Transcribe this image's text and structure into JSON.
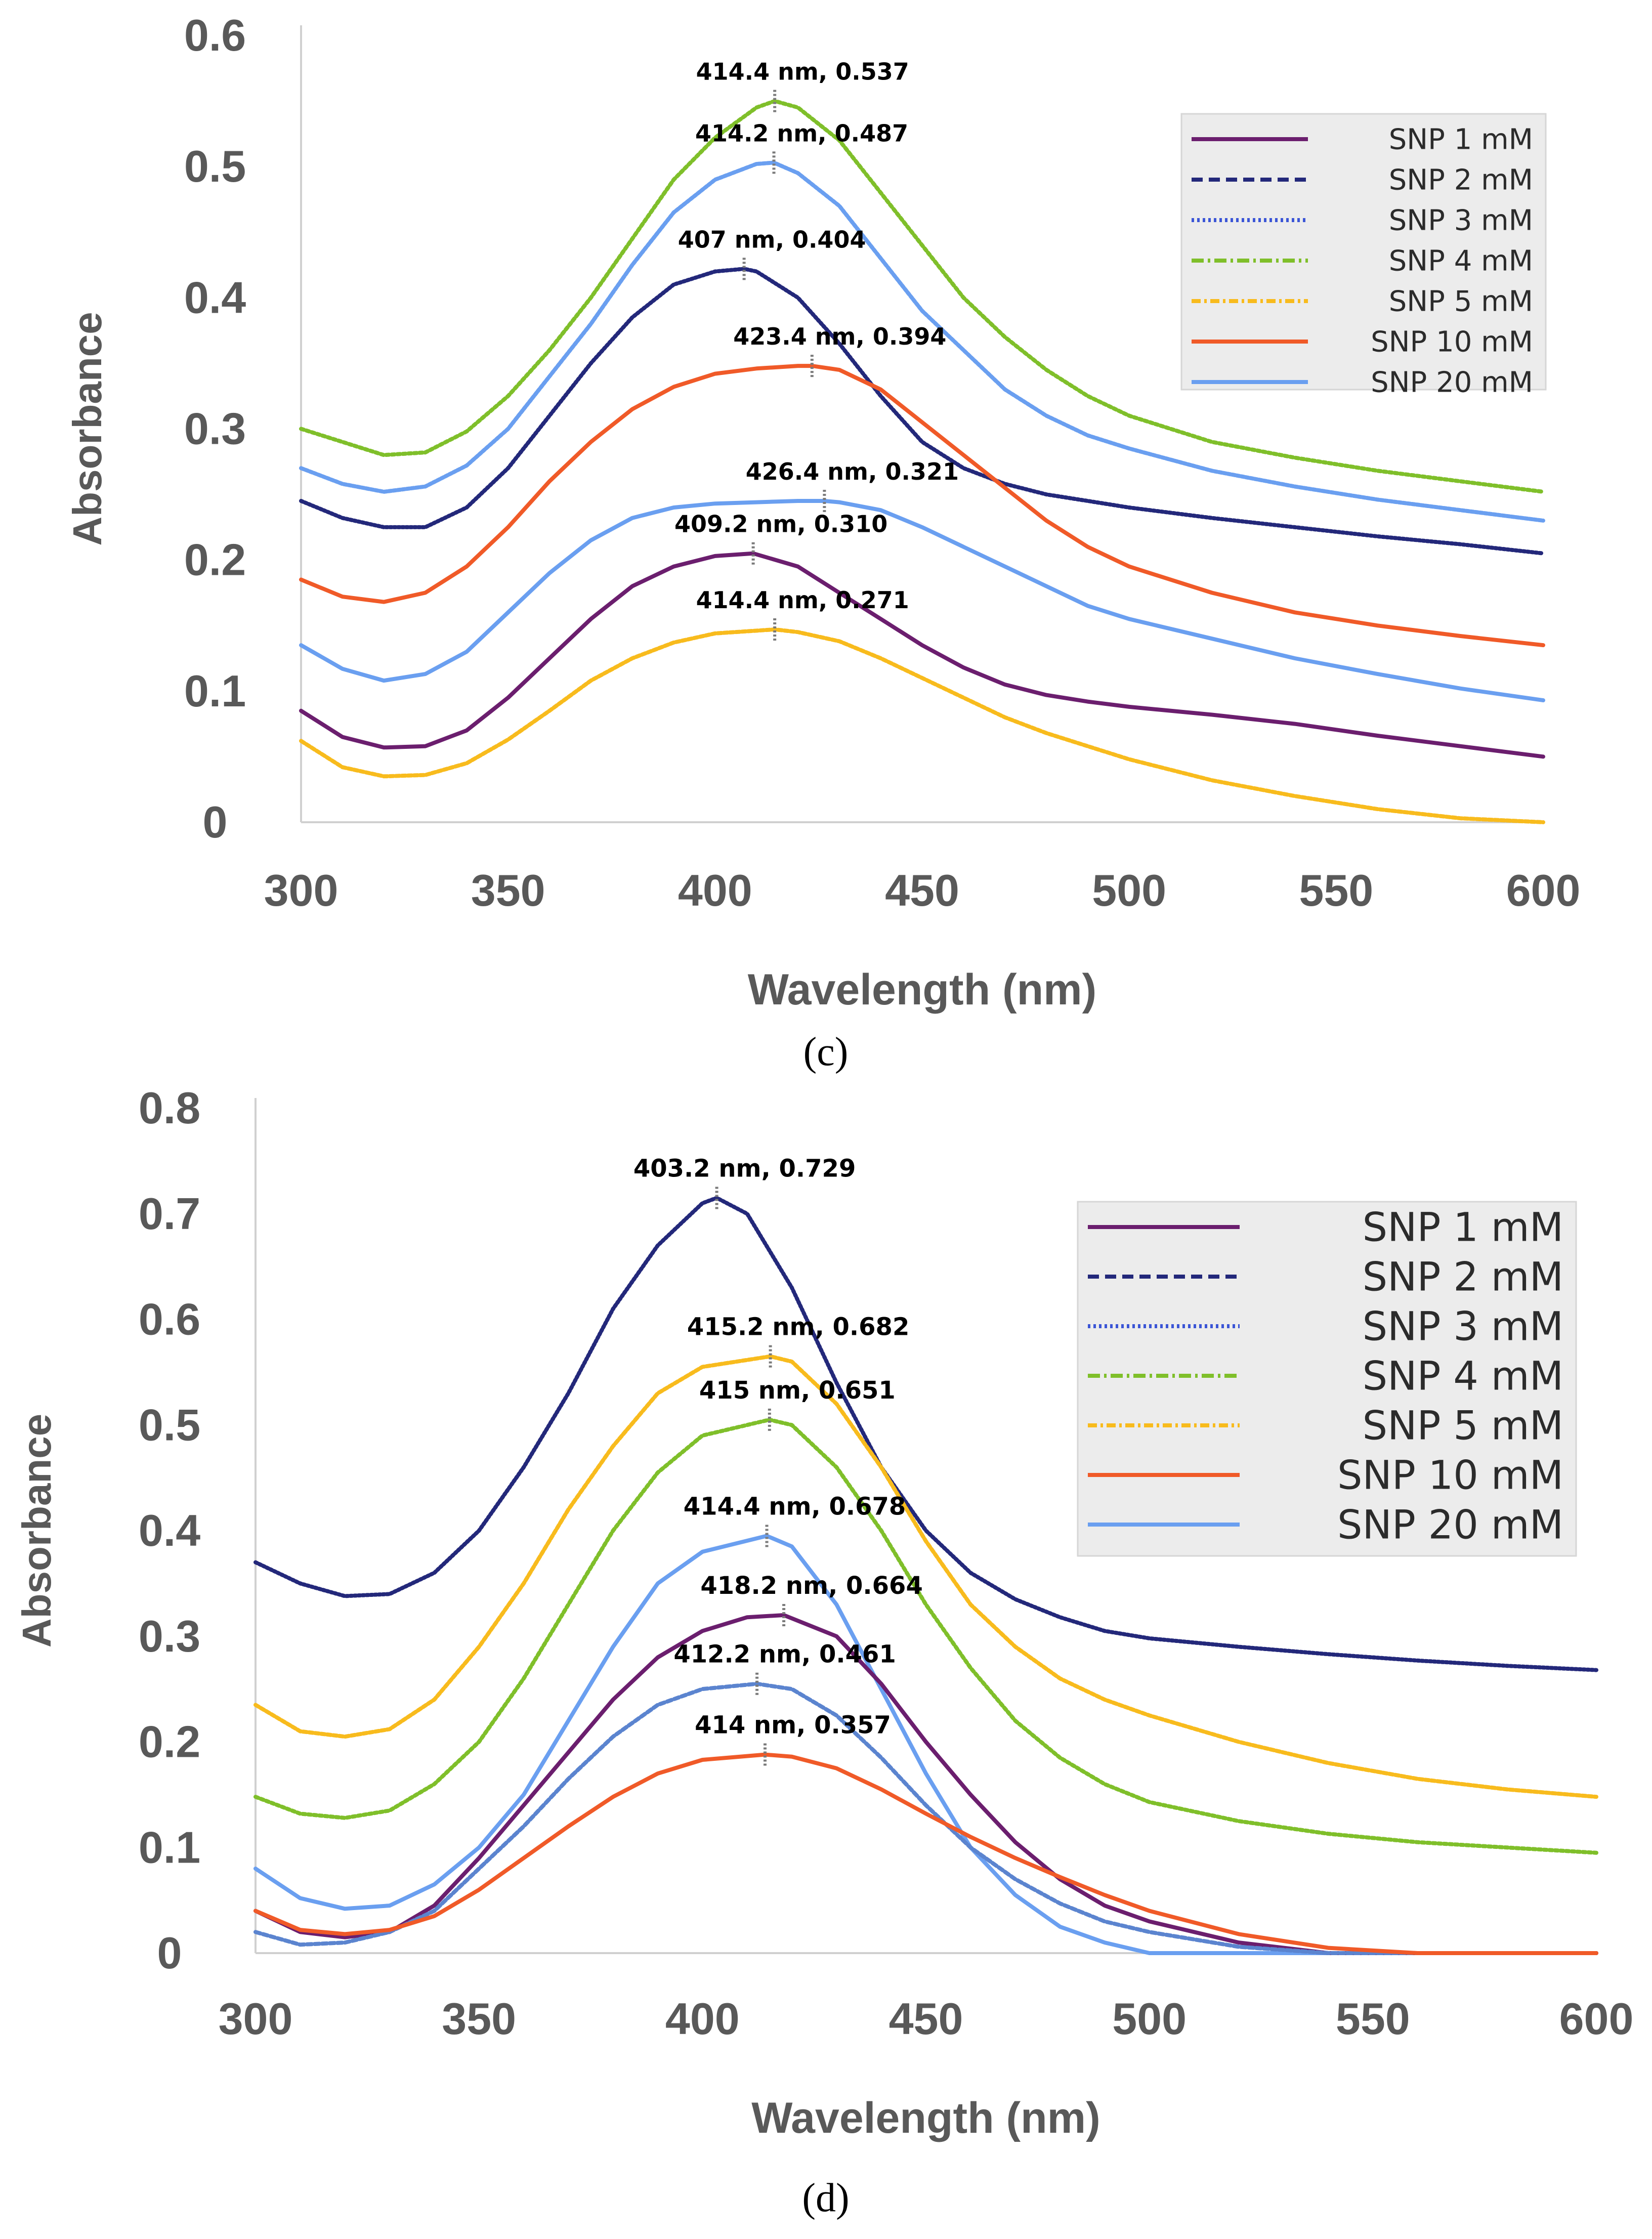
{
  "chart_data": [
    {
      "type": "line",
      "panel_label": "(c)",
      "xlabel": "Wavelength (nm)",
      "ylabel": "Absorbance",
      "xlim": [
        300,
        600
      ],
      "ylim": [
        0,
        0.6
      ],
      "x_ticks": [
        "300",
        "350",
        "400",
        "450",
        "500",
        "550",
        "600"
      ],
      "y_ticks": [
        "0",
        "0.1",
        "0.2",
        "0.3",
        "0.4",
        "0.5",
        "0.6"
      ],
      "legend_position": "top-right",
      "legend": [
        "SNP 1 mM",
        "SNP 2 mM",
        "SNP 3 mM",
        "SNP 4 mM",
        "SNP 5 mM",
        "SNP 10 mM",
        "SNP 20 mM"
      ],
      "series": [
        {
          "name": "SNP 4",
          "color": "#7fbf2a",
          "dash": "6 5",
          "x": [
            300,
            310,
            320,
            330,
            340,
            350,
            360,
            370,
            380,
            390,
            400,
            410,
            414.4,
            420,
            430,
            440,
            450,
            460,
            470,
            480,
            490,
            500,
            520,
            540,
            560,
            580,
            600
          ],
          "y": [
            0.3,
            0.29,
            0.28,
            0.282,
            0.298,
            0.325,
            0.36,
            0.4,
            0.445,
            0.49,
            0.522,
            0.545,
            0.55,
            0.545,
            0.52,
            0.48,
            0.44,
            0.4,
            0.37,
            0.345,
            0.325,
            0.31,
            0.29,
            0.278,
            0.268,
            0.26,
            0.252
          ]
        },
        {
          "name": "SNP 20",
          "color": "#6a9ff0",
          "dash": "6 3",
          "x": [
            300,
            310,
            320,
            330,
            340,
            350,
            360,
            370,
            380,
            390,
            400,
            410,
            414.2,
            420,
            430,
            440,
            450,
            460,
            470,
            480,
            490,
            500,
            520,
            540,
            560,
            580,
            600
          ],
          "y": [
            0.27,
            0.258,
            0.252,
            0.256,
            0.272,
            0.3,
            0.34,
            0.38,
            0.425,
            0.465,
            0.49,
            0.502,
            0.503,
            0.495,
            0.47,
            0.43,
            0.39,
            0.36,
            0.33,
            0.31,
            0.295,
            0.285,
            0.268,
            0.256,
            0.246,
            0.238,
            0.23
          ]
        },
        {
          "name": "SNP 3",
          "color": "#23287a",
          "dash": "4 4",
          "x": [
            300,
            310,
            320,
            330,
            340,
            350,
            360,
            370,
            380,
            390,
            400,
            407,
            410,
            420,
            430,
            440,
            450,
            460,
            470,
            480,
            490,
            500,
            520,
            540,
            560,
            580,
            600
          ],
          "y": [
            0.245,
            0.232,
            0.225,
            0.225,
            0.24,
            0.27,
            0.31,
            0.35,
            0.385,
            0.41,
            0.42,
            0.422,
            0.42,
            0.4,
            0.365,
            0.325,
            0.29,
            0.27,
            0.258,
            0.25,
            0.245,
            0.24,
            0.232,
            0.225,
            0.218,
            0.212,
            0.205
          ]
        },
        {
          "name": "SNP 10",
          "color": "#f05a28",
          "dash": "",
          "x": [
            300,
            310,
            320,
            330,
            340,
            350,
            360,
            370,
            380,
            390,
            400,
            410,
            420,
            423.4,
            430,
            440,
            450,
            460,
            470,
            480,
            490,
            500,
            520,
            540,
            560,
            580,
            600
          ],
          "y": [
            0.185,
            0.172,
            0.168,
            0.175,
            0.195,
            0.225,
            0.26,
            0.29,
            0.315,
            0.332,
            0.342,
            0.346,
            0.348,
            0.348,
            0.345,
            0.33,
            0.305,
            0.28,
            0.255,
            0.23,
            0.21,
            0.195,
            0.175,
            0.16,
            0.15,
            0.142,
            0.135
          ]
        },
        {
          "name": "SNP 20b",
          "color": "#6a9ff0",
          "dash": "",
          "x": [
            300,
            310,
            320,
            330,
            340,
            350,
            360,
            370,
            380,
            390,
            400,
            410,
            420,
            426.4,
            430,
            440,
            450,
            460,
            470,
            480,
            490,
            500,
            520,
            540,
            560,
            580,
            600
          ],
          "y": [
            0.135,
            0.117,
            0.108,
            0.113,
            0.13,
            0.16,
            0.19,
            0.215,
            0.232,
            0.24,
            0.243,
            0.244,
            0.245,
            0.245,
            0.244,
            0.238,
            0.225,
            0.21,
            0.195,
            0.18,
            0.165,
            0.155,
            0.14,
            0.125,
            0.113,
            0.102,
            0.093
          ]
        },
        {
          "name": "SNP 1",
          "color": "#6b1e6e",
          "dash": "",
          "x": [
            300,
            310,
            320,
            330,
            340,
            350,
            360,
            370,
            380,
            390,
            400,
            409.2,
            420,
            430,
            440,
            450,
            460,
            470,
            480,
            490,
            500,
            520,
            540,
            560,
            580,
            600
          ],
          "y": [
            0.085,
            0.065,
            0.057,
            0.058,
            0.07,
            0.095,
            0.125,
            0.155,
            0.18,
            0.195,
            0.203,
            0.205,
            0.195,
            0.175,
            0.155,
            0.135,
            0.118,
            0.105,
            0.097,
            0.092,
            0.088,
            0.082,
            0.075,
            0.066,
            0.058,
            0.05
          ]
        },
        {
          "name": "SNP 5",
          "color": "#f8bb1d",
          "dash": "8 4",
          "x": [
            300,
            310,
            320,
            330,
            340,
            350,
            360,
            370,
            380,
            390,
            400,
            414.4,
            420,
            430,
            440,
            450,
            460,
            470,
            480,
            490,
            500,
            520,
            540,
            560,
            580,
            600
          ],
          "y": [
            0.062,
            0.042,
            0.035,
            0.036,
            0.045,
            0.063,
            0.085,
            0.108,
            0.125,
            0.137,
            0.144,
            0.147,
            0.145,
            0.138,
            0.125,
            0.11,
            0.095,
            0.08,
            0.068,
            0.058,
            0.048,
            0.032,
            0.02,
            0.01,
            0.003,
            0.0
          ]
        }
      ],
      "annotations": [
        {
          "text": "414.4 nm, 0.537",
          "x": 414.4,
          "y": 0.55
        },
        {
          "text": "414.2 nm, 0.487",
          "x": 414.2,
          "y": 0.503
        },
        {
          "text": "407 nm, 0.404",
          "x": 407,
          "y": 0.422
        },
        {
          "text": "423.4 nm, 0.394",
          "x": 423.4,
          "y": 0.348
        },
        {
          "text": "426.4 nm, 0.321",
          "x": 426.4,
          "y": 0.245
        },
        {
          "text": "409.2 nm, 0.310",
          "x": 409.2,
          "y": 0.205
        },
        {
          "text": "414.4 nm, 0.271",
          "x": 414.4,
          "y": 0.147
        }
      ]
    },
    {
      "type": "line",
      "panel_label": "(d)",
      "xlabel": "Wavelength (nm)",
      "ylabel": "Absorbance",
      "xlim": [
        300,
        600
      ],
      "ylim": [
        0,
        0.8
      ],
      "x_ticks": [
        "300",
        "350",
        "400",
        "450",
        "500",
        "550",
        "600"
      ],
      "y_ticks": [
        "0",
        "0.1",
        "0.2",
        "0.3",
        "0.4",
        "0.5",
        "0.6",
        "0.7",
        "0.8"
      ],
      "legend_position": "top-right",
      "legend": [
        "SNP 1 mM",
        "SNP 2 mM",
        "SNP 3 mM",
        "SNP 4 mM",
        "SNP 5 mM",
        "SNP 10 mM",
        "SNP 20 mM"
      ],
      "series": [
        {
          "name": "SNP 3",
          "color": "#23287a",
          "dash": "4 4",
          "x": [
            300,
            310,
            320,
            330,
            340,
            350,
            360,
            370,
            380,
            390,
            400,
            403.2,
            410,
            420,
            430,
            440,
            450,
            460,
            470,
            480,
            490,
            500,
            520,
            540,
            560,
            580,
            600
          ],
          "y": [
            0.37,
            0.35,
            0.338,
            0.34,
            0.36,
            0.4,
            0.46,
            0.53,
            0.61,
            0.67,
            0.71,
            0.715,
            0.7,
            0.63,
            0.54,
            0.46,
            0.4,
            0.36,
            0.335,
            0.318,
            0.305,
            0.298,
            0.29,
            0.283,
            0.277,
            0.272,
            0.268
          ]
        },
        {
          "name": "SNP 5",
          "color": "#f8bb1d",
          "dash": "8 4",
          "x": [
            300,
            310,
            320,
            330,
            340,
            350,
            360,
            370,
            380,
            390,
            400,
            415.2,
            420,
            430,
            440,
            450,
            460,
            470,
            480,
            490,
            500,
            520,
            540,
            560,
            580,
            600
          ],
          "y": [
            0.235,
            0.21,
            0.205,
            0.212,
            0.24,
            0.29,
            0.35,
            0.42,
            0.48,
            0.53,
            0.555,
            0.565,
            0.56,
            0.52,
            0.46,
            0.39,
            0.33,
            0.29,
            0.26,
            0.24,
            0.225,
            0.2,
            0.18,
            0.165,
            0.155,
            0.148
          ]
        },
        {
          "name": "SNP 4",
          "color": "#7fbf2a",
          "dash": "6 5",
          "x": [
            300,
            310,
            320,
            330,
            340,
            350,
            360,
            370,
            380,
            390,
            400,
            415,
            420,
            430,
            440,
            450,
            460,
            470,
            480,
            490,
            500,
            520,
            540,
            560,
            580,
            600
          ],
          "y": [
            0.148,
            0.132,
            0.128,
            0.135,
            0.16,
            0.2,
            0.26,
            0.33,
            0.4,
            0.455,
            0.49,
            0.505,
            0.5,
            0.46,
            0.4,
            0.33,
            0.27,
            0.22,
            0.185,
            0.16,
            0.143,
            0.125,
            0.113,
            0.105,
            0.1,
            0.095
          ]
        },
        {
          "name": "SNP 20",
          "color": "#6a9ff0",
          "dash": "",
          "x": [
            300,
            310,
            320,
            330,
            340,
            350,
            360,
            370,
            380,
            390,
            400,
            414.4,
            420,
            430,
            440,
            450,
            460,
            470,
            480,
            490,
            500,
            510,
            520,
            540,
            560,
            580,
            600
          ],
          "y": [
            0.08,
            0.052,
            0.042,
            0.045,
            0.065,
            0.1,
            0.15,
            0.22,
            0.29,
            0.35,
            0.38,
            0.395,
            0.385,
            0.33,
            0.25,
            0.17,
            0.1,
            0.055,
            0.025,
            0.01,
            0.0,
            0.0,
            0.0,
            0.0,
            0.0,
            0.0,
            0.0
          ]
        },
        {
          "name": "SNP 1",
          "color": "#6b1e6e",
          "dash": "",
          "x": [
            300,
            310,
            320,
            330,
            340,
            350,
            360,
            370,
            380,
            390,
            400,
            410,
            418.2,
            430,
            440,
            450,
            460,
            470,
            480,
            490,
            500,
            520,
            540,
            560,
            580,
            600
          ],
          "y": [
            0.04,
            0.02,
            0.015,
            0.02,
            0.045,
            0.09,
            0.14,
            0.19,
            0.24,
            0.28,
            0.305,
            0.318,
            0.32,
            0.3,
            0.255,
            0.2,
            0.15,
            0.105,
            0.07,
            0.045,
            0.03,
            0.01,
            0.0,
            0.0,
            0.0,
            0.0
          ]
        },
        {
          "name": "SNP 2",
          "color": "#5b84cf",
          "dash": "10 5",
          "x": [
            300,
            310,
            320,
            330,
            340,
            350,
            360,
            370,
            380,
            390,
            400,
            412.2,
            420,
            430,
            440,
            450,
            460,
            470,
            480,
            490,
            500,
            520,
            540,
            560,
            580,
            600
          ],
          "y": [
            0.02,
            0.008,
            0.01,
            0.02,
            0.04,
            0.08,
            0.12,
            0.165,
            0.205,
            0.235,
            0.25,
            0.255,
            0.25,
            0.225,
            0.185,
            0.14,
            0.1,
            0.07,
            0.047,
            0.03,
            0.02,
            0.006,
            0.0,
            0.0,
            0.0,
            0.0
          ]
        },
        {
          "name": "SNP 10",
          "color": "#f05a28",
          "dash": "",
          "x": [
            300,
            310,
            320,
            330,
            340,
            350,
            360,
            370,
            380,
            390,
            400,
            414,
            420,
            430,
            440,
            450,
            460,
            470,
            480,
            490,
            500,
            520,
            540,
            560,
            580,
            600
          ],
          "y": [
            0.04,
            0.022,
            0.018,
            0.022,
            0.035,
            0.06,
            0.09,
            0.12,
            0.148,
            0.17,
            0.183,
            0.188,
            0.186,
            0.175,
            0.155,
            0.132,
            0.11,
            0.09,
            0.072,
            0.055,
            0.04,
            0.018,
            0.005,
            0.0,
            0.0,
            0.0
          ]
        }
      ],
      "annotations": [
        {
          "text": "403.2 nm, 0.729",
          "x": 403.2,
          "y": 0.715
        },
        {
          "text": "415.2 nm, 0.682",
          "x": 415.2,
          "y": 0.565
        },
        {
          "text": "415 nm, 0.651",
          "x": 415,
          "y": 0.505
        },
        {
          "text": "414.4 nm, 0.678",
          "x": 414.4,
          "y": 0.395
        },
        {
          "text": "418.2 nm, 0.664",
          "x": 418.2,
          "y": 0.32
        },
        {
          "text": "412.2 nm, 0.461",
          "x": 412.2,
          "y": 0.255
        },
        {
          "text": "414 nm, 0.357",
          "x": 414,
          "y": 0.188
        }
      ]
    }
  ]
}
